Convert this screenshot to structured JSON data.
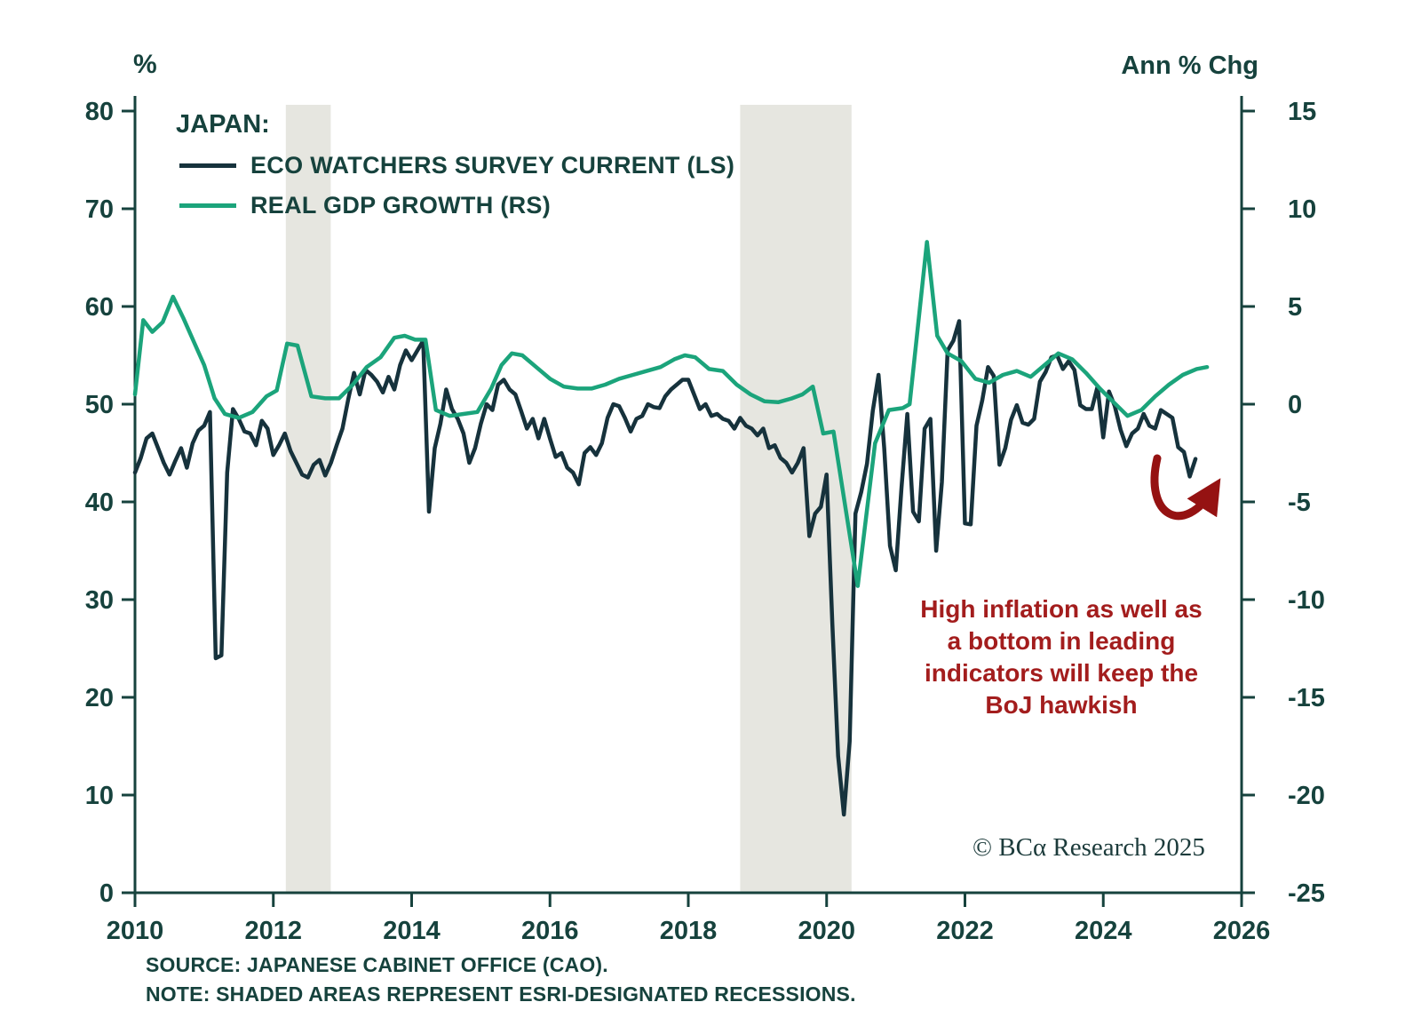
{
  "axes": {
    "left_unit": "%",
    "right_unit": "Ann % Chg"
  },
  "legend": {
    "title": "JAPAN:",
    "items": [
      {
        "label": "ECO WATCHERS SURVEY CURRENT (LS)",
        "color": "#16323c"
      },
      {
        "label": "REAL GDP GROWTH (RS)",
        "color": "#1ba47b"
      }
    ]
  },
  "annotation": {
    "color": "#a31d1d",
    "lines": [
      "High inflation as well as",
      "a bottom in leading",
      "indicators will keep the",
      "BoJ hawkish"
    ]
  },
  "copyright": "© BCα Research 2025",
  "footer": {
    "source": "SOURCE: JAPANESE CABINET OFFICE (CAO).",
    "note": "NOTE: SHADED AREAS REPRESENT ESRI-DESIGNATED RECESSIONS."
  },
  "chart_data": {
    "type": "line",
    "title": "Japan: Eco Watchers Survey vs Real GDP Growth",
    "x_range": [
      2010,
      2026
    ],
    "x_ticks": [
      2010,
      2012,
      2014,
      2016,
      2018,
      2020,
      2022,
      2024,
      2026
    ],
    "left_axis": {
      "label": "%",
      "range": [
        0,
        80
      ],
      "ticks": [
        0,
        10,
        20,
        30,
        40,
        50,
        60,
        70,
        80
      ]
    },
    "right_axis": {
      "label": "Ann % Chg",
      "range": [
        -25,
        15
      ],
      "ticks": [
        -25,
        -20,
        -15,
        -10,
        -5,
        0,
        5,
        10,
        15
      ]
    },
    "grid": false,
    "legend_position": "top-left",
    "recession_band_color": "#e6e6e0",
    "recession_bands": [
      [
        2012.18,
        2012.83
      ],
      [
        2018.75,
        2020.36
      ]
    ],
    "series": [
      {
        "name": "ECO WATCHERS SURVEY CURRENT (LS)",
        "axis": "left",
        "color": "#16323c",
        "start_x": 2010.0,
        "x_step": 0.0833333,
        "values": [
          43,
          44.5,
          46.5,
          47,
          45.5,
          44,
          42.8,
          44.2,
          45.5,
          43.5,
          46,
          47.3,
          47.8,
          49.2,
          24,
          24.3,
          43,
          49.5,
          48.5,
          47.2,
          47,
          45.8,
          48.3,
          47.5,
          44.8,
          45.8,
          47,
          45.2,
          44,
          42.8,
          42.5,
          43.8,
          44.3,
          42.7,
          44,
          45.8,
          47.5,
          50.5,
          53.2,
          51,
          53.5,
          53,
          52.3,
          51.2,
          52.8,
          51.5,
          54,
          55.5,
          54.5,
          55.5,
          56.5,
          39,
          45.5,
          48,
          51.5,
          49.5,
          48.5,
          47,
          44,
          45.5,
          48,
          50,
          49.4,
          52,
          52.5,
          51.5,
          51,
          49.3,
          47.5,
          48.5,
          46.5,
          48.5,
          46.5,
          44.6,
          45,
          43.5,
          43,
          41.8,
          45,
          45.6,
          44.8,
          46,
          48.6,
          50,
          49.8,
          48.6,
          47.2,
          48.5,
          48.8,
          50,
          49.7,
          49.6,
          50.8,
          51.5,
          52,
          52.5,
          52.5,
          51,
          49.5,
          50,
          48.8,
          49,
          48.5,
          48.3,
          47.5,
          48.6,
          47.8,
          47.5,
          46.8,
          47.5,
          45.5,
          45.8,
          44.5,
          44,
          43,
          44,
          45.5,
          36.5,
          38.8,
          39.5,
          42.8,
          27.5,
          14,
          8,
          15.5,
          38.8,
          41,
          43.9,
          49.3,
          53,
          45.5,
          35.5,
          33,
          41.5,
          49,
          39,
          38,
          47.5,
          48.5,
          35,
          42,
          55.5,
          56.5,
          58.5,
          37.8,
          37.7,
          47.8,
          50.4,
          53.8,
          52.9,
          43.8,
          45.5,
          48.4,
          49.9,
          48.1,
          47.9,
          48.5,
          52.3,
          53.3,
          54.8,
          55,
          53.6,
          54.4,
          53.5,
          49.9,
          49.5,
          49.5,
          51.8,
          46.6,
          51.3,
          49.8,
          47.4,
          45.7,
          47,
          47.5,
          49,
          47.8,
          47.5,
          49.4,
          49,
          48.6,
          45.6,
          45.1,
          42.6,
          44.4
        ]
      },
      {
        "name": "REAL GDP GROWTH (RS)",
        "axis": "right",
        "color": "#1ba47b",
        "points": [
          [
            2010.0,
            0.5
          ],
          [
            2010.12,
            4.3
          ],
          [
            2010.25,
            3.7
          ],
          [
            2010.4,
            4.2
          ],
          [
            2010.55,
            5.5
          ],
          [
            2010.7,
            4.4
          ],
          [
            2010.85,
            3.2
          ],
          [
            2011.0,
            2.0
          ],
          [
            2011.15,
            0.3
          ],
          [
            2011.3,
            -0.5
          ],
          [
            2011.5,
            -0.7
          ],
          [
            2011.7,
            -0.4
          ],
          [
            2011.9,
            0.4
          ],
          [
            2012.05,
            0.7
          ],
          [
            2012.2,
            3.1
          ],
          [
            2012.35,
            3.0
          ],
          [
            2012.55,
            0.4
          ],
          [
            2012.75,
            0.3
          ],
          [
            2012.95,
            0.3
          ],
          [
            2013.15,
            1.0
          ],
          [
            2013.35,
            1.9
          ],
          [
            2013.55,
            2.4
          ],
          [
            2013.75,
            3.4
          ],
          [
            2013.9,
            3.5
          ],
          [
            2014.05,
            3.3
          ],
          [
            2014.2,
            3.3
          ],
          [
            2014.35,
            -0.3
          ],
          [
            2014.55,
            -0.6
          ],
          [
            2014.75,
            -0.5
          ],
          [
            2014.95,
            -0.4
          ],
          [
            2015.15,
            0.8
          ],
          [
            2015.3,
            2.0
          ],
          [
            2015.45,
            2.6
          ],
          [
            2015.6,
            2.5
          ],
          [
            2015.8,
            1.9
          ],
          [
            2016.0,
            1.3
          ],
          [
            2016.2,
            0.9
          ],
          [
            2016.4,
            0.8
          ],
          [
            2016.6,
            0.8
          ],
          [
            2016.8,
            1.0
          ],
          [
            2017.0,
            1.3
          ],
          [
            2017.2,
            1.5
          ],
          [
            2017.4,
            1.7
          ],
          [
            2017.6,
            1.9
          ],
          [
            2017.8,
            2.3
          ],
          [
            2017.95,
            2.5
          ],
          [
            2018.1,
            2.4
          ],
          [
            2018.3,
            1.8
          ],
          [
            2018.5,
            1.7
          ],
          [
            2018.7,
            1.0
          ],
          [
            2018.9,
            0.5
          ],
          [
            2019.1,
            0.15
          ],
          [
            2019.3,
            0.1
          ],
          [
            2019.5,
            0.3
          ],
          [
            2019.65,
            0.5
          ],
          [
            2019.8,
            0.9
          ],
          [
            2019.95,
            -1.5
          ],
          [
            2020.1,
            -1.4
          ],
          [
            2020.45,
            -9.3
          ],
          [
            2020.7,
            -2.0
          ],
          [
            2020.9,
            -0.3
          ],
          [
            2021.1,
            -0.2
          ],
          [
            2021.2,
            0.0
          ],
          [
            2021.45,
            8.3
          ],
          [
            2021.6,
            3.5
          ],
          [
            2021.75,
            2.6
          ],
          [
            2021.95,
            2.2
          ],
          [
            2022.15,
            1.3
          ],
          [
            2022.35,
            1.1
          ],
          [
            2022.55,
            1.5
          ],
          [
            2022.75,
            1.7
          ],
          [
            2022.95,
            1.4
          ],
          [
            2023.15,
            2.0
          ],
          [
            2023.35,
            2.6
          ],
          [
            2023.55,
            2.3
          ],
          [
            2023.75,
            1.6
          ],
          [
            2023.95,
            0.8
          ],
          [
            2024.15,
            0.1
          ],
          [
            2024.35,
            -0.6
          ],
          [
            2024.55,
            -0.3
          ],
          [
            2024.75,
            0.4
          ],
          [
            2024.95,
            1.0
          ],
          [
            2025.15,
            1.5
          ],
          [
            2025.35,
            1.8
          ],
          [
            2025.5,
            1.9
          ]
        ]
      }
    ]
  }
}
